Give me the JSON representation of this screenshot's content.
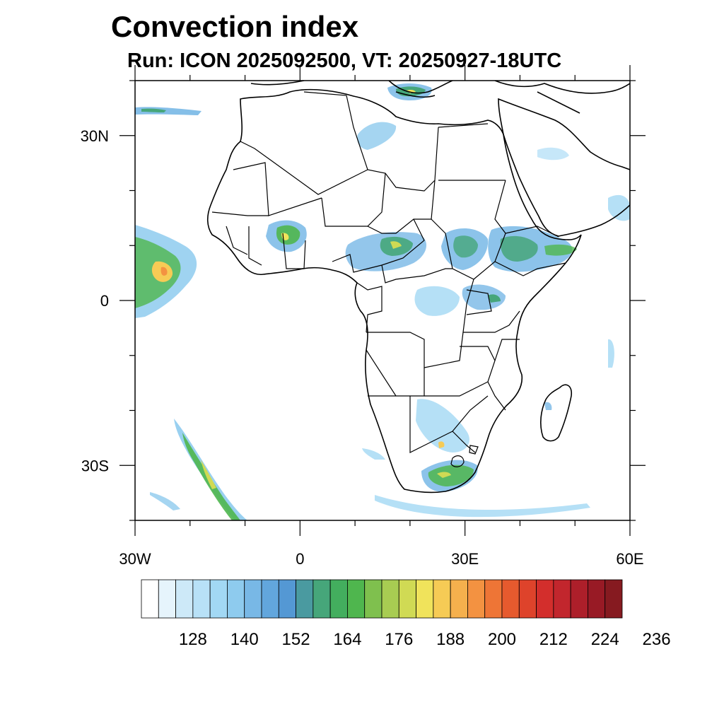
{
  "title": "Convection index",
  "subtitle": "Run: ICON 2025092500,  VT: 20250927-18UTC",
  "axes": {
    "lon_labels": [
      {
        "lon": -30,
        "label": "30W"
      },
      {
        "lon": 0,
        "label": "0"
      },
      {
        "lon": 30,
        "label": "30E"
      },
      {
        "lon": 60,
        "label": "60E"
      }
    ],
    "lat_labels": [
      {
        "lat": 30,
        "label": "30N"
      },
      {
        "lat": 0,
        "label": "0"
      },
      {
        "lat": -30,
        "label": "30S"
      }
    ],
    "lon_range": [
      -30,
      60
    ],
    "lat_range": [
      -40,
      40
    ]
  },
  "colorbar": {
    "colors": [
      "#ffffff",
      "#e6f4fc",
      "#cde9f8",
      "#b8e1f7",
      "#a2d8f4",
      "#8ecbee",
      "#78b8e6",
      "#62a6dd",
      "#5498d4",
      "#4a9aa0",
      "#46a67a",
      "#43ae5e",
      "#4fb64e",
      "#7fc04e",
      "#a8cc52",
      "#d0da54",
      "#f0e35b",
      "#f6cb55",
      "#f5b04d",
      "#f39241",
      "#ee7536",
      "#e65a2e",
      "#de432b",
      "#d32e2c",
      "#c2262d",
      "#ad1f2a",
      "#981a25",
      "#861a20"
    ],
    "tick_labels": [
      "128",
      "140",
      "152",
      "164",
      "176",
      "188",
      "200",
      "212",
      "224",
      "236"
    ]
  }
}
